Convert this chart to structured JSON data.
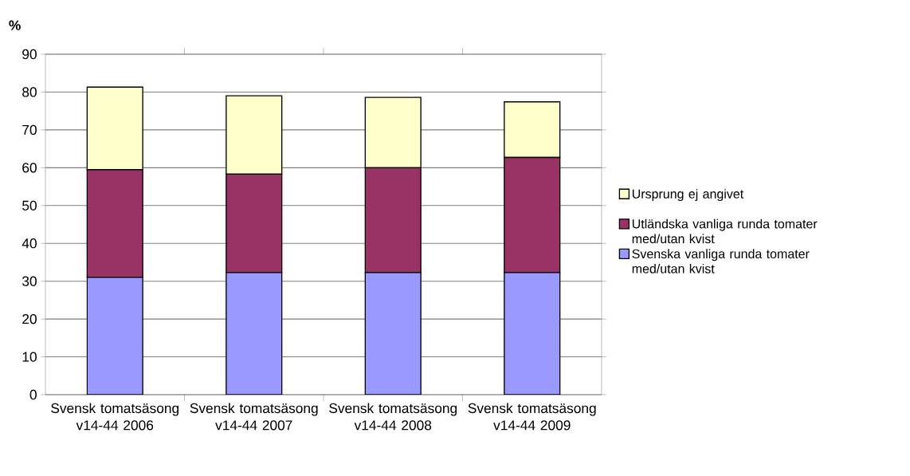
{
  "chart_data": {
    "type": "bar",
    "stacked": true,
    "ylabel": "%",
    "categories": [
      "Svensk tomatsäsong v14-44 2006",
      "Svensk tomatsäsong v14-44 2007",
      "Svensk tomatsäsong v14-44 2008",
      "Svensk tomatsäsong v14-44 2009"
    ],
    "series": [
      {
        "name": "Svenska vanliga runda tomater med/utan kvist",
        "color": "#9999ff",
        "values": [
          31.0,
          32.3,
          32.3,
          32.3
        ]
      },
      {
        "name": "Utländska vanliga runda tomater med/utan kvist",
        "color": "#993366",
        "values": [
          28.5,
          26.0,
          27.7,
          30.4
        ]
      },
      {
        "name": "Ursprung ej angivet",
        "color": "#ffffcc",
        "values": [
          21.8,
          20.7,
          18.6,
          14.7
        ]
      }
    ],
    "ylim": [
      0,
      90
    ],
    "yticks": [
      0,
      10,
      20,
      30,
      40,
      50,
      60,
      70,
      80,
      90
    ],
    "grid": "y",
    "legend": "right"
  }
}
